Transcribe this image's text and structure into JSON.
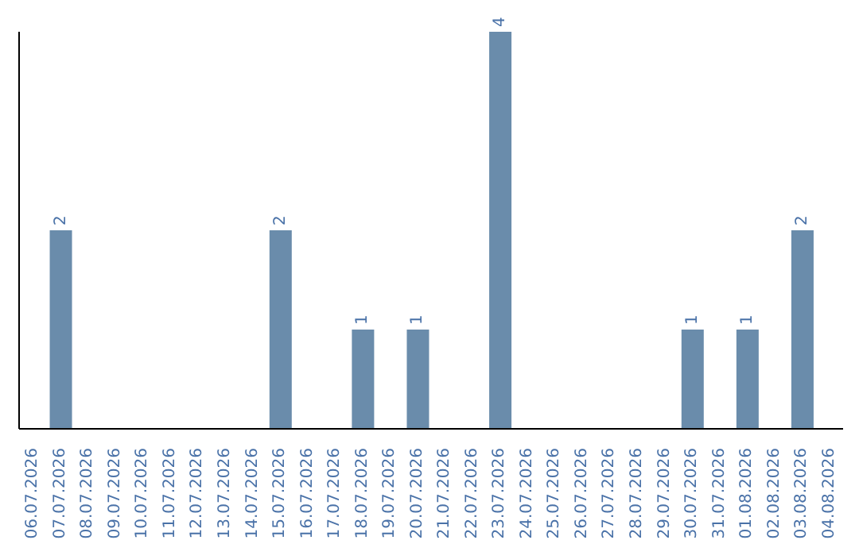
{
  "chart_data": {
    "type": "bar",
    "categories": [
      "06.07.2026",
      "07.07.2026",
      "08.07.2026",
      "09.07.2026",
      "10.07.2026",
      "11.07.2026",
      "12.07.2026",
      "13.07.2026",
      "14.07.2026",
      "15.07.2026",
      "16.07.2026",
      "17.07.2026",
      "18.07.2026",
      "19.07.2026",
      "20.07.2026",
      "21.07.2026",
      "22.07.2026",
      "23.07.2026",
      "24.07.2026",
      "25.07.2026",
      "26.07.2026",
      "27.07.2026",
      "28.07.2026",
      "29.07.2026",
      "30.07.2026",
      "31.07.2026",
      "01.08.2026",
      "02.08.2026",
      "03.08.2026",
      "04.08.2026"
    ],
    "values": [
      0,
      2,
      0,
      0,
      0,
      0,
      0,
      0,
      0,
      2,
      0,
      0,
      1,
      0,
      1,
      0,
      0,
      4,
      0,
      0,
      0,
      0,
      0,
      0,
      1,
      0,
      1,
      0,
      2,
      0
    ],
    "value_labels": [
      null,
      "2",
      null,
      null,
      null,
      null,
      null,
      null,
      null,
      "2",
      null,
      null,
      "1",
      null,
      "1",
      null,
      null,
      "4",
      null,
      null,
      null,
      null,
      null,
      null,
      "1",
      null,
      "1",
      null,
      "2",
      null
    ],
    "color": "#6a8cab",
    "grid": false,
    "legend": false
  }
}
